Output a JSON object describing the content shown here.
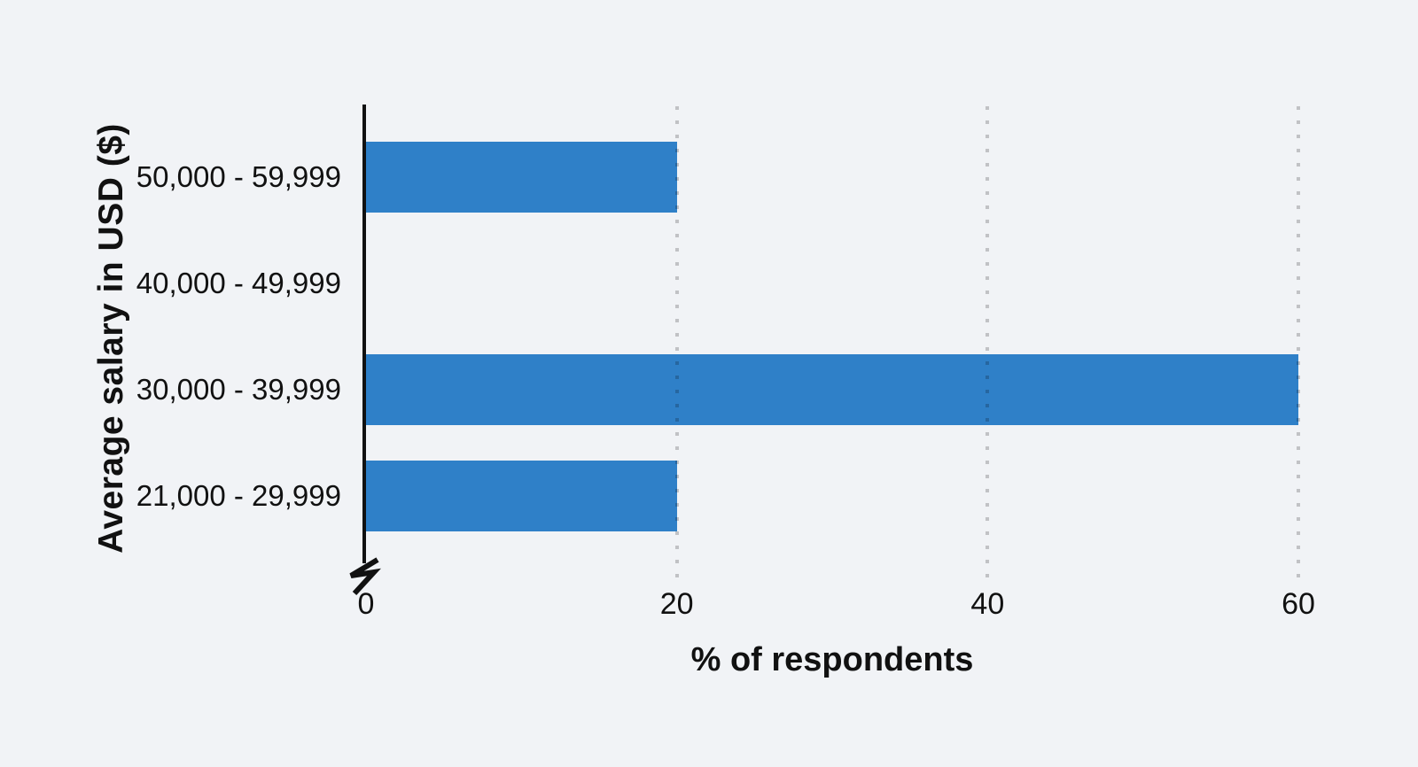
{
  "chart_data": {
    "type": "bar",
    "orientation": "horizontal",
    "categories": [
      "50,000 - 59,999",
      "40,000 - 49,999",
      "30,000 - 39,999",
      "21,000 - 29,999"
    ],
    "values": [
      20,
      0,
      60,
      20
    ],
    "xlabel": "% of respondents",
    "ylabel": "Average salary in USD ($)",
    "xlim": [
      0,
      60
    ],
    "xticks": [
      0,
      20,
      40,
      60
    ],
    "gridline_ticks": [
      20,
      40,
      60
    ],
    "grid": "vertical-dotted",
    "axis_break_at_zero": true,
    "legend": "none",
    "title": "",
    "bar_color": "#2f80c8",
    "background_color": "#f1f3f6",
    "axis_color": "#111111"
  }
}
